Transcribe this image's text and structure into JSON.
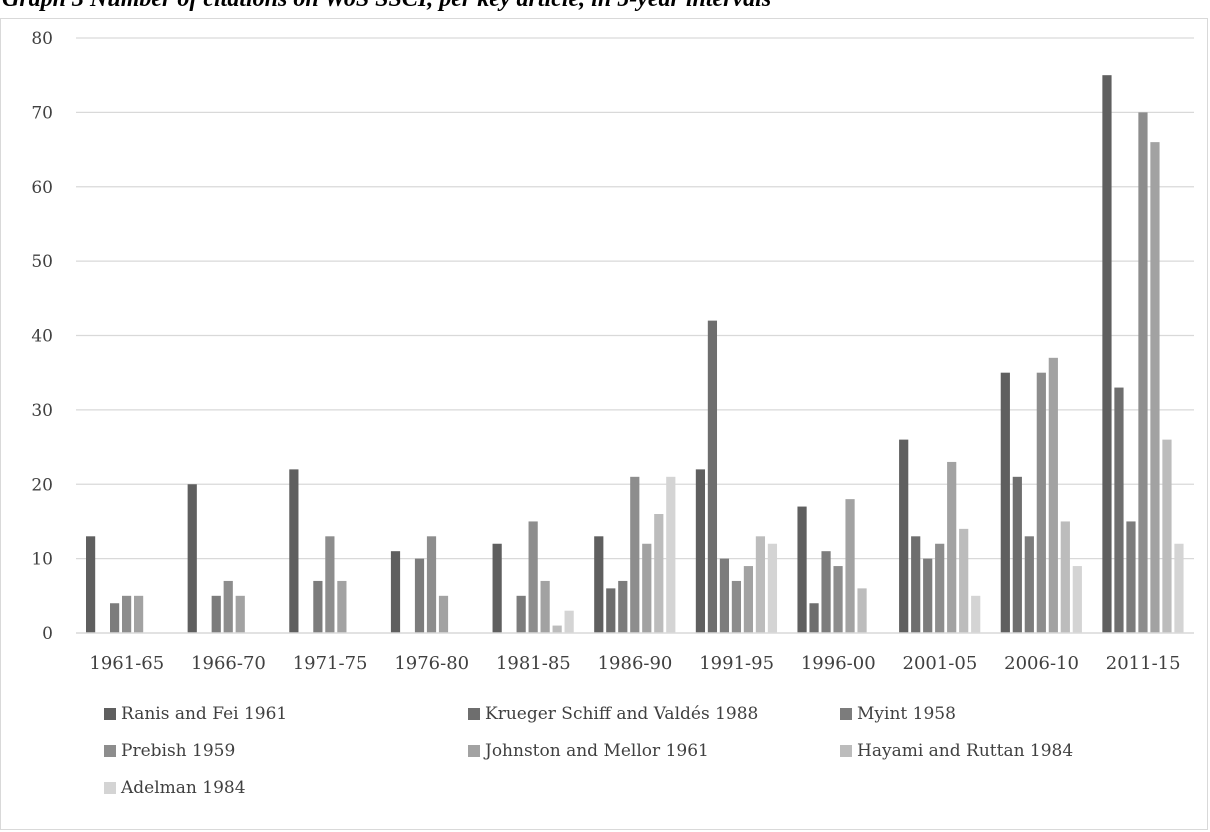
{
  "chart_data": {
    "type": "bar",
    "title": "Graph 3 Number of citations on WoS SSCI, per key article, in 5-year intervals",
    "categories": [
      "1961-65",
      "1966-70",
      "1971-75",
      "1976-80",
      "1981-85",
      "1986-90",
      "1991-95",
      "1996-00",
      "2001-05",
      "2006-10",
      "2011-15"
    ],
    "ylim": [
      0,
      80
    ],
    "yticks": [
      0,
      10,
      20,
      30,
      40,
      50,
      60,
      70,
      80
    ],
    "grid": true,
    "legend_position": "bottom",
    "series": [
      {
        "name": "Ranis and Fei 1961",
        "color": "#5f5f5f",
        "values": [
          13,
          20,
          22,
          11,
          12,
          13,
          22,
          17,
          26,
          35,
          75
        ]
      },
      {
        "name": "Krueger Schiff and Valdés 1988",
        "color": "#6e6e6e",
        "values": [
          0,
          0,
          0,
          0,
          0,
          6,
          42,
          4,
          13,
          21,
          33
        ]
      },
      {
        "name": "Myint 1958",
        "color": "#7c7c7c",
        "values": [
          4,
          5,
          7,
          10,
          5,
          7,
          10,
          11,
          10,
          13,
          15
        ]
      },
      {
        "name": "Prebish 1959",
        "color": "#8d8d8d",
        "values": [
          5,
          7,
          13,
          13,
          15,
          21,
          7,
          9,
          12,
          35,
          70
        ]
      },
      {
        "name": "Johnston and Mellor 1961",
        "color": "#a2a2a2",
        "values": [
          5,
          5,
          7,
          5,
          7,
          12,
          9,
          18,
          23,
          37,
          66
        ]
      },
      {
        "name": "Hayami and Ruttan 1984",
        "color": "#bcbcbc",
        "values": [
          0,
          0,
          0,
          0,
          1,
          16,
          13,
          6,
          14,
          15,
          26
        ]
      },
      {
        "name": "Adelman 1984",
        "color": "#d4d4d4",
        "values": [
          0,
          0,
          0,
          0,
          3,
          21,
          12,
          0,
          5,
          9,
          12
        ]
      }
    ]
  }
}
